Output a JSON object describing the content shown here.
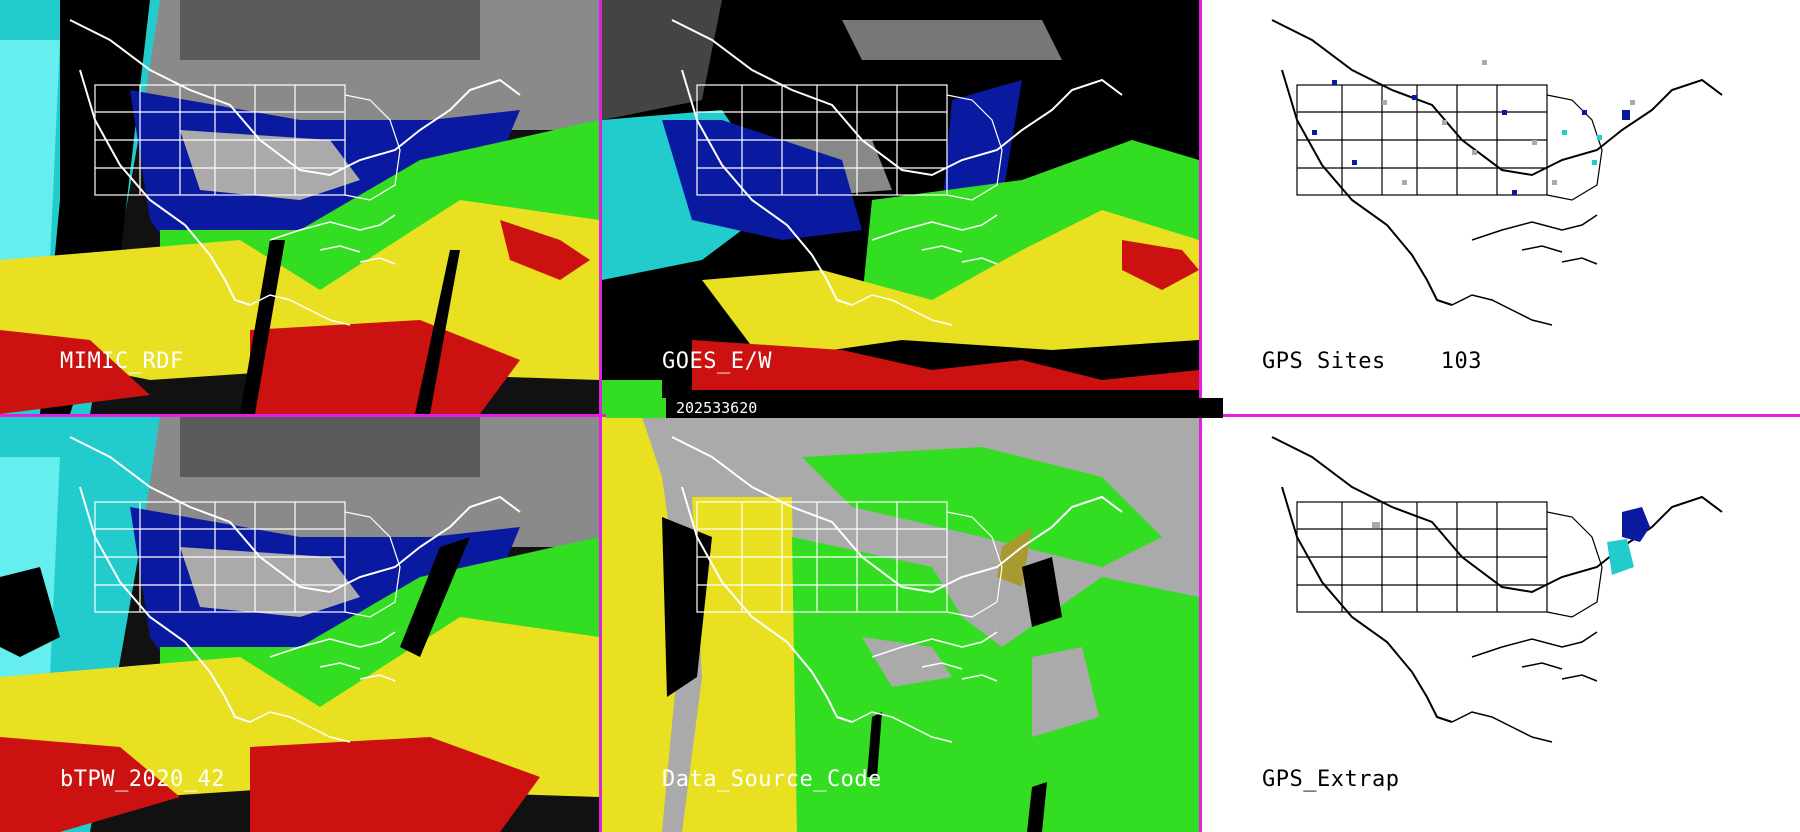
{
  "panels": {
    "mimic": {
      "label": "MIMIC_RDF"
    },
    "goes": {
      "label": "GOES_E/W"
    },
    "gps_sites": {
      "label": "GPS Sites",
      "count": "103"
    },
    "btpw": {
      "label": "bTPW_2020_42"
    },
    "data_source": {
      "label": "Data_Source_Code"
    },
    "gps_extrap": {
      "label": "GPS_Extrap"
    }
  },
  "timestamp": "202533620",
  "colors": {
    "divider": "#e020e0",
    "moist_red": "#cc1111",
    "yellow": "#e8e020",
    "green": "#33dd22",
    "cyan": "#22dddd",
    "navy": "#0a1aa0",
    "gray": "#aaaaaa"
  }
}
